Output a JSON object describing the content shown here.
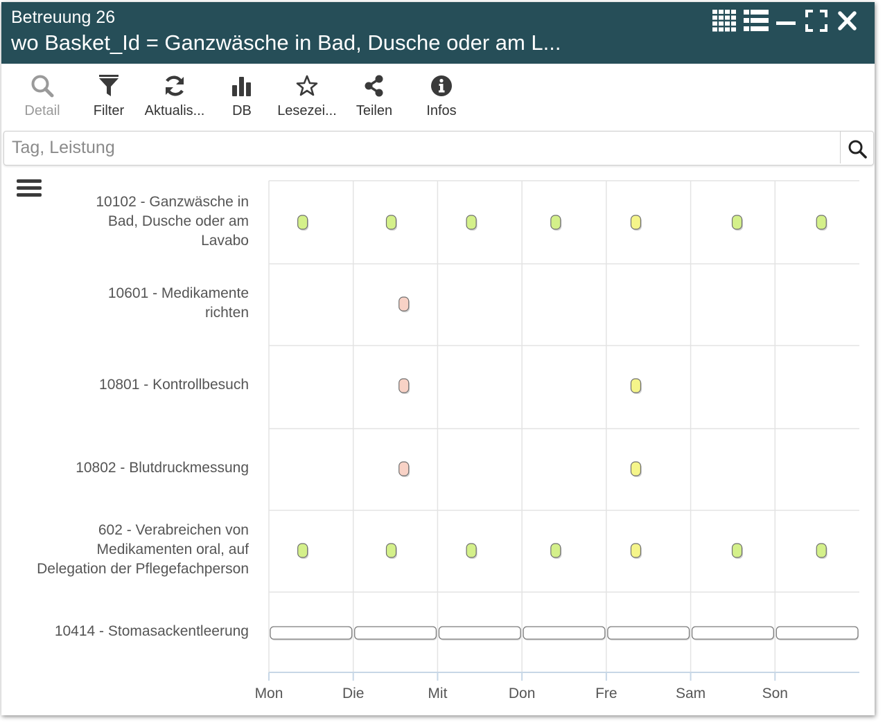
{
  "window": {
    "title": "Betreuung 26",
    "subtitle": "wo Basket_Id = Ganzwäsche in Bad, Dusche oder am L...",
    "controls": [
      "grid-icon",
      "list-icon",
      "minimize-icon",
      "maximize-icon",
      "close-icon"
    ]
  },
  "toolbar": {
    "detail": "Detail",
    "filter": "Filter",
    "refresh": "Aktualis...",
    "db": "DB",
    "bookmark": "Lesezei...",
    "share": "Teilen",
    "info": "Infos"
  },
  "search": {
    "placeholder": "Tag, Leistung"
  },
  "rows": [
    {
      "lines": [
        "10102 - Ganzwäsche in",
        "Bad, Dusche oder am",
        "Lavabo"
      ]
    },
    {
      "lines": [
        "10601 - Medikamente",
        "richten"
      ]
    },
    {
      "lines": [
        "10801 - Kontrollbesuch"
      ]
    },
    {
      "lines": [
        "10802 - Blutdruckmessung"
      ]
    },
    {
      "lines": [
        "602 - Verabreichen von",
        "Medikamenten oral, auf",
        "Delegation der Pflegefachperson"
      ]
    },
    {
      "lines": [
        "10414 - Stomasackentleerung"
      ]
    }
  ],
  "colors": {
    "header_bg": "#264e58",
    "green": "#d4f08a",
    "yellow": "#f5f58a",
    "red": "#f8d2c6",
    "grid": "#e3e3e3",
    "axis": "#c7d7e6"
  },
  "chart_data": {
    "type": "timeline",
    "x_categories": [
      "Mon",
      "Die",
      "Mit",
      "Don",
      "Fre",
      "Sam",
      "Son"
    ],
    "series": [
      {
        "row": 0,
        "markers": [
          {
            "day": 0.4,
            "status": "green"
          },
          {
            "day": 1.45,
            "status": "green"
          },
          {
            "day": 2.4,
            "status": "green"
          },
          {
            "day": 3.4,
            "status": "green"
          },
          {
            "day": 4.35,
            "status": "yellow"
          },
          {
            "day": 5.55,
            "status": "green"
          },
          {
            "day": 6.55,
            "status": "green"
          }
        ]
      },
      {
        "row": 1,
        "markers": [
          {
            "day": 1.6,
            "status": "red"
          }
        ]
      },
      {
        "row": 2,
        "markers": [
          {
            "day": 1.6,
            "status": "red"
          },
          {
            "day": 4.35,
            "status": "yellow"
          }
        ]
      },
      {
        "row": 3,
        "markers": [
          {
            "day": 1.6,
            "status": "red"
          },
          {
            "day": 4.35,
            "status": "yellow"
          }
        ]
      },
      {
        "row": 4,
        "markers": [
          {
            "day": 0.4,
            "status": "green"
          },
          {
            "day": 1.45,
            "status": "green"
          },
          {
            "day": 2.4,
            "status": "green"
          },
          {
            "day": 3.4,
            "status": "green"
          },
          {
            "day": 4.35,
            "status": "yellow"
          },
          {
            "day": 5.55,
            "status": "green"
          },
          {
            "day": 6.55,
            "status": "green"
          }
        ]
      },
      {
        "row": 5,
        "bars": [
          {
            "start": 0,
            "end": 1
          },
          {
            "start": 1,
            "end": 2
          },
          {
            "start": 2,
            "end": 3
          },
          {
            "start": 3,
            "end": 4
          },
          {
            "start": 4,
            "end": 5
          },
          {
            "start": 5,
            "end": 6
          },
          {
            "start": 6,
            "end": 7
          }
        ]
      }
    ]
  }
}
